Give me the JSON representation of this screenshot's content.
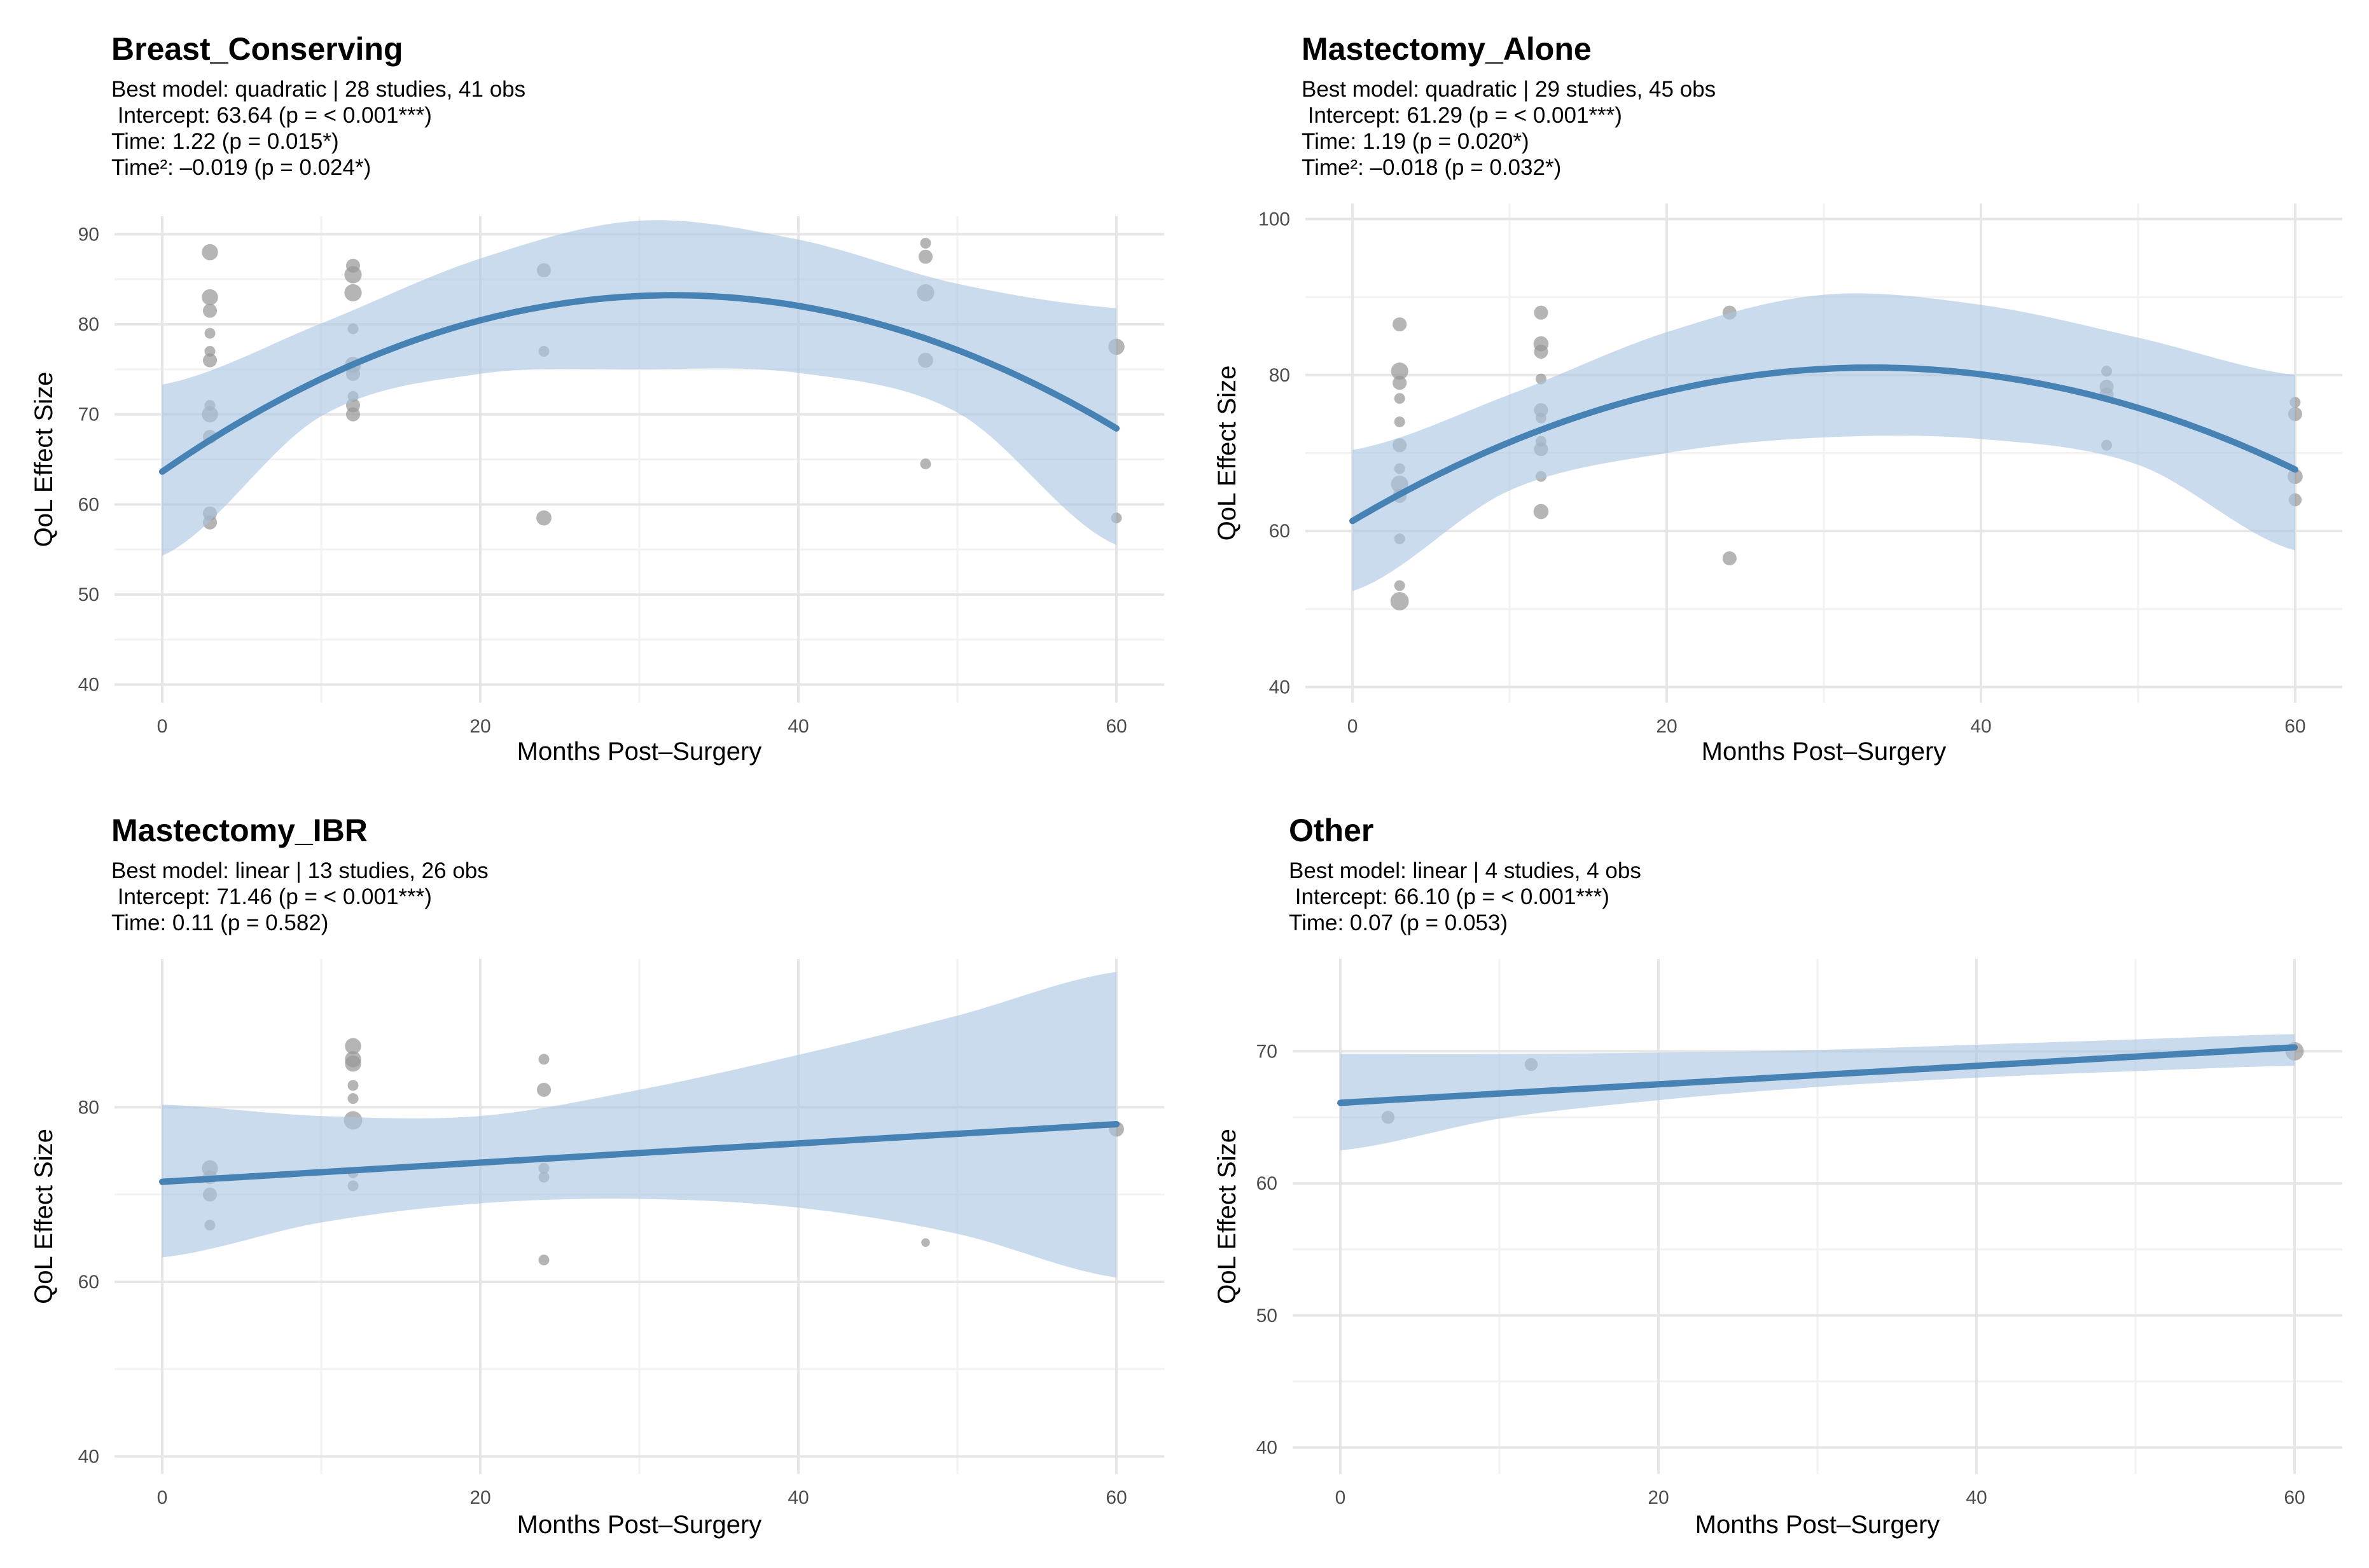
{
  "colors": {
    "band": "#a9c5e2",
    "line": "#4682b4",
    "points": "#999999",
    "gridMajor": "#e6e6e6",
    "gridMinor": "#f2f2f2",
    "tick": "#4d4d4d"
  },
  "chart_data": [
    {
      "type": "scatter",
      "title": "Breast_Conserving",
      "subtitle": [
        "Best model: quadratic | 28 studies, 41 obs",
        " Intercept: 63.64 (p = < 0.001***)",
        "Time: 1.22 (p = 0.015*)",
        "Time²: –0.019 (p = 0.024*)"
      ],
      "xlabel": "Months Post–Surgery",
      "ylabel": "QoL Effect Size",
      "xlim": [
        -3,
        63
      ],
      "ylim": [
        38,
        92
      ],
      "xticks": [
        0,
        20,
        40,
        60
      ],
      "yticks": [
        40,
        50,
        60,
        70,
        80,
        90
      ],
      "model": "quadratic",
      "coefficients": {
        "intercept": 63.64,
        "time": 1.22,
        "time2": -0.019
      },
      "fit_band": {
        "x": [
          0,
          10,
          20,
          30,
          40,
          50,
          60
        ],
        "lower": [
          54.3,
          69.8,
          74.5,
          75.0,
          74.6,
          70.2,
          55.5
        ],
        "upper": [
          73.3,
          80.1,
          87.3,
          91.5,
          89.4,
          84.5,
          81.8
        ]
      },
      "points": [
        {
          "x": 3,
          "y": 88,
          "size": 1.5
        },
        {
          "x": 3,
          "y": 83,
          "size": 1.5
        },
        {
          "x": 3,
          "y": 81.5,
          "size": 1.3
        },
        {
          "x": 3,
          "y": 79,
          "size": 1
        },
        {
          "x": 3,
          "y": 77,
          "size": 1
        },
        {
          "x": 3,
          "y": 76,
          "size": 1.3
        },
        {
          "x": 3,
          "y": 71,
          "size": 1
        },
        {
          "x": 3,
          "y": 70,
          "size": 1.5
        },
        {
          "x": 3,
          "y": 67.5,
          "size": 1.3
        },
        {
          "x": 3,
          "y": 59,
          "size": 1.3
        },
        {
          "x": 3,
          "y": 58,
          "size": 1.3
        },
        {
          "x": 12,
          "y": 86.5,
          "size": 1.3
        },
        {
          "x": 12,
          "y": 85.5,
          "size": 1.6
        },
        {
          "x": 12,
          "y": 83.5,
          "size": 1.6
        },
        {
          "x": 12,
          "y": 79.5,
          "size": 1
        },
        {
          "x": 12,
          "y": 75.5,
          "size": 1.5
        },
        {
          "x": 12,
          "y": 74.5,
          "size": 1.3
        },
        {
          "x": 12,
          "y": 72,
          "size": 1
        },
        {
          "x": 12,
          "y": 71,
          "size": 1.3
        },
        {
          "x": 12,
          "y": 70,
          "size": 1.3
        },
        {
          "x": 24,
          "y": 86,
          "size": 1.3
        },
        {
          "x": 24,
          "y": 77,
          "size": 1
        },
        {
          "x": 24,
          "y": 58.5,
          "size": 1.4
        },
        {
          "x": 48,
          "y": 89,
          "size": 1
        },
        {
          "x": 48,
          "y": 87.5,
          "size": 1.3
        },
        {
          "x": 48,
          "y": 83.5,
          "size": 1.6
        },
        {
          "x": 48,
          "y": 76,
          "size": 1.4
        },
        {
          "x": 48,
          "y": 64.5,
          "size": 1
        },
        {
          "x": 60,
          "y": 77.5,
          "size": 1.5
        },
        {
          "x": 60,
          "y": 58.5,
          "size": 1
        }
      ]
    },
    {
      "type": "scatter",
      "title": "Mastectomy_Alone",
      "subtitle": [
        "Best model: quadratic | 29 studies, 45 obs",
        " Intercept: 61.29 (p = < 0.001***)",
        "Time: 1.19 (p = 0.020*)",
        "Time²: –0.018 (p = 0.032*)"
      ],
      "xlabel": "Months Post–Surgery",
      "ylabel": "QoL Effect Size",
      "xlim": [
        -3,
        63
      ],
      "ylim": [
        38,
        102
      ],
      "xticks": [
        0,
        20,
        40,
        60
      ],
      "yticks": [
        40,
        60,
        80,
        100
      ],
      "model": "quadratic",
      "coefficients": {
        "intercept": 61.29,
        "time": 1.19,
        "time2": -0.018
      },
      "fit_band": {
        "x": [
          0,
          10,
          20,
          30,
          40,
          50,
          60
        ],
        "lower": [
          52.3,
          65.2,
          70.0,
          72.0,
          71.8,
          68.5,
          57.5
        ],
        "upper": [
          70.4,
          77.5,
          85.5,
          90.3,
          89.0,
          84.8,
          80.0
        ]
      },
      "points": [
        {
          "x": 3,
          "y": 86.5,
          "size": 1.3
        },
        {
          "x": 3,
          "y": 80.5,
          "size": 1.6
        },
        {
          "x": 3,
          "y": 79,
          "size": 1.3
        },
        {
          "x": 3,
          "y": 77,
          "size": 1
        },
        {
          "x": 3,
          "y": 74,
          "size": 1
        },
        {
          "x": 3,
          "y": 71,
          "size": 1.3
        },
        {
          "x": 3,
          "y": 68,
          "size": 1
        },
        {
          "x": 3,
          "y": 66,
          "size": 1.6
        },
        {
          "x": 3,
          "y": 64.5,
          "size": 1.3
        },
        {
          "x": 3,
          "y": 59,
          "size": 1
        },
        {
          "x": 3,
          "y": 53,
          "size": 1
        },
        {
          "x": 3,
          "y": 51,
          "size": 1.7
        },
        {
          "x": 12,
          "y": 88,
          "size": 1.3
        },
        {
          "x": 12,
          "y": 84,
          "size": 1.4
        },
        {
          "x": 12,
          "y": 83,
          "size": 1.3
        },
        {
          "x": 12,
          "y": 79.5,
          "size": 1
        },
        {
          "x": 12,
          "y": 75.5,
          "size": 1.3
        },
        {
          "x": 12,
          "y": 74.5,
          "size": 1
        },
        {
          "x": 12,
          "y": 71.5,
          "size": 1
        },
        {
          "x": 12,
          "y": 70.5,
          "size": 1.3
        },
        {
          "x": 12,
          "y": 67,
          "size": 1
        },
        {
          "x": 12,
          "y": 62.5,
          "size": 1.4
        },
        {
          "x": 24,
          "y": 88,
          "size": 1.3
        },
        {
          "x": 24,
          "y": 56.5,
          "size": 1.3
        },
        {
          "x": 48,
          "y": 80.5,
          "size": 1
        },
        {
          "x": 48,
          "y": 78.5,
          "size": 1.3
        },
        {
          "x": 48,
          "y": 77.5,
          "size": 1.3
        },
        {
          "x": 48,
          "y": 71,
          "size": 1
        },
        {
          "x": 60,
          "y": 76.5,
          "size": 1
        },
        {
          "x": 60,
          "y": 75,
          "size": 1.3
        },
        {
          "x": 60,
          "y": 67,
          "size": 1.4
        },
        {
          "x": 60,
          "y": 64,
          "size": 1.2
        }
      ]
    },
    {
      "type": "scatter",
      "title": "Mastectomy_IBR",
      "subtitle": [
        "Best model: linear | 13 studies, 26 obs",
        " Intercept: 71.46 (p = < 0.001***)",
        "Time: 0.11 (p = 0.582)"
      ],
      "xlabel": "Months Post–Surgery",
      "ylabel": "QoL Effect Size",
      "xlim": [
        -3,
        63
      ],
      "ylim": [
        38,
        97
      ],
      "xticks": [
        0,
        20,
        40,
        60
      ],
      "yticks": [
        40,
        60,
        80
      ],
      "model": "linear",
      "coefficients": {
        "intercept": 71.46,
        "time": 0.11
      },
      "fit_band": {
        "x": [
          0,
          10,
          20,
          30,
          40,
          50,
          60
        ],
        "lower": [
          62.8,
          66.8,
          69.0,
          69.5,
          68.5,
          65.5,
          60.5
        ],
        "upper": [
          80.3,
          79.0,
          79.0,
          82.0,
          86.0,
          90.5,
          95.5
        ]
      },
      "points": [
        {
          "x": 3,
          "y": 73,
          "size": 1.5
        },
        {
          "x": 3,
          "y": 72,
          "size": 1.3
        },
        {
          "x": 3,
          "y": 70,
          "size": 1.3
        },
        {
          "x": 3,
          "y": 66.5,
          "size": 1
        },
        {
          "x": 12,
          "y": 87,
          "size": 1.5
        },
        {
          "x": 12,
          "y": 85.5,
          "size": 1.5
        },
        {
          "x": 12,
          "y": 85,
          "size": 1.5
        },
        {
          "x": 12,
          "y": 82.5,
          "size": 1
        },
        {
          "x": 12,
          "y": 81,
          "size": 1
        },
        {
          "x": 12,
          "y": 78.5,
          "size": 1.7
        },
        {
          "x": 12,
          "y": 72.5,
          "size": 1
        },
        {
          "x": 12,
          "y": 71,
          "size": 1
        },
        {
          "x": 24,
          "y": 85.5,
          "size": 1
        },
        {
          "x": 24,
          "y": 82,
          "size": 1.3
        },
        {
          "x": 24,
          "y": 73,
          "size": 1
        },
        {
          "x": 24,
          "y": 72,
          "size": 1
        },
        {
          "x": 24,
          "y": 62.5,
          "size": 1
        },
        {
          "x": 48,
          "y": 64.5,
          "size": 0.8
        },
        {
          "x": 60,
          "y": 77.5,
          "size": 1.4
        }
      ]
    },
    {
      "type": "scatter",
      "title": "Other",
      "subtitle": [
        "Best model: linear | 4 studies, 4 obs",
        " Intercept: 66.10 (p = < 0.001***)",
        "Time: 0.07 (p = 0.053)"
      ],
      "xlabel": "Months Post–Surgery",
      "ylabel": "QoL Effect Size",
      "xlim": [
        -3,
        63
      ],
      "ylim": [
        38,
        77
      ],
      "xticks": [
        0,
        20,
        40,
        60
      ],
      "yticks": [
        40,
        50,
        60,
        70
      ],
      "model": "linear",
      "coefficients": {
        "intercept": 66.1,
        "time": 0.07
      },
      "fit_band": {
        "x": [
          0,
          10,
          20,
          30,
          40,
          50,
          60
        ],
        "lower": [
          62.5,
          64.9,
          66.3,
          67.3,
          68.0,
          68.5,
          68.9
        ],
        "upper": [
          69.8,
          69.8,
          69.9,
          70.1,
          70.5,
          70.9,
          71.3
        ]
      },
      "points": [
        {
          "x": 3,
          "y": 65,
          "size": 1.2
        },
        {
          "x": 12,
          "y": 69,
          "size": 1.2
        },
        {
          "x": 60,
          "y": 70,
          "size": 1.7
        }
      ]
    }
  ]
}
